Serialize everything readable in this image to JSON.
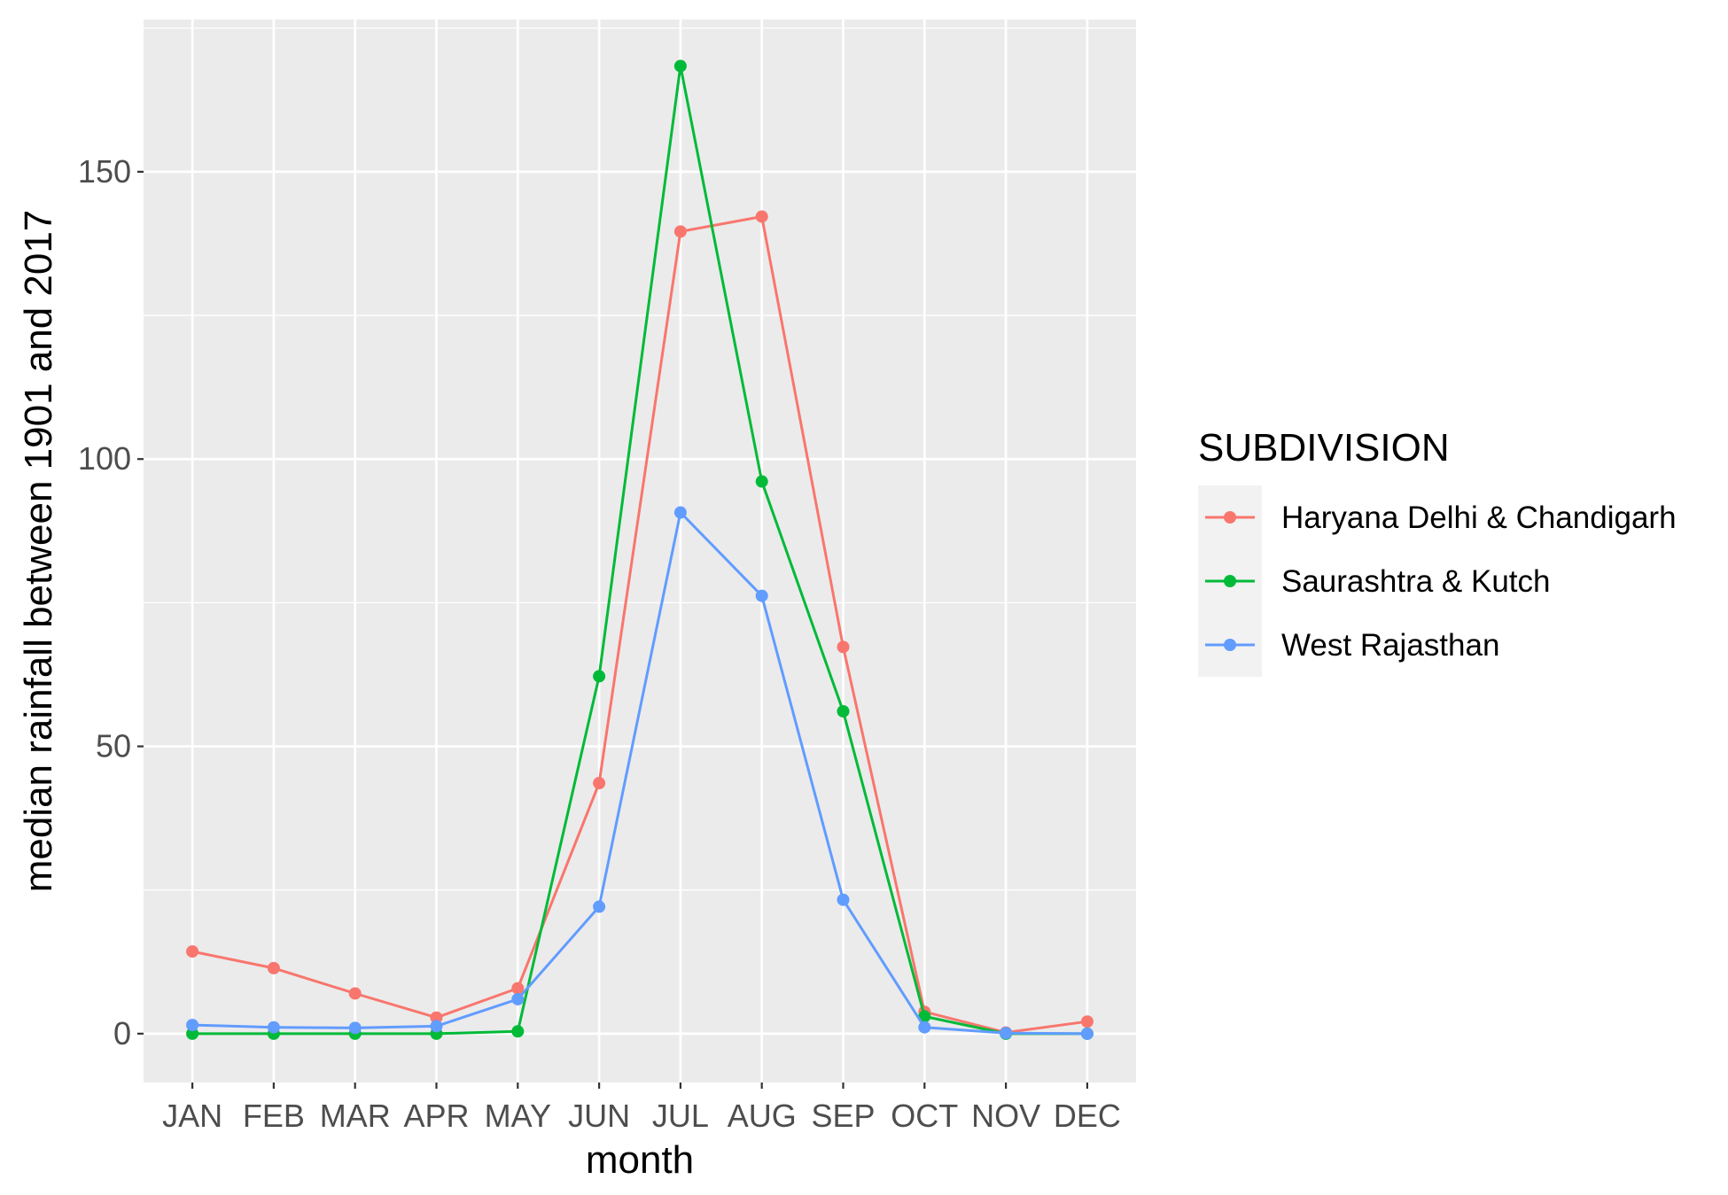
{
  "chart_data": {
    "type": "line",
    "xlabel": "month",
    "ylabel": "median rainfall between 1901 and 2017",
    "categories": [
      "JAN",
      "FEB",
      "MAR",
      "APR",
      "MAY",
      "JUN",
      "JUL",
      "AUG",
      "SEP",
      "OCT",
      "NOV",
      "DEC"
    ],
    "yticks": [
      0,
      50,
      100,
      150
    ],
    "ylim": [
      -8.5,
      176.5
    ],
    "grid": true,
    "legend": {
      "title": "SUBDIVISION",
      "placement": "right"
    },
    "series": [
      {
        "name": "Haryana Delhi & Chandigarh",
        "color": "#F8766D",
        "values": [
          14.3,
          11.4,
          7.0,
          2.8,
          7.9,
          43.6,
          139.6,
          142.2,
          67.3,
          3.8,
          0.2,
          2.1
        ]
      },
      {
        "name": "Saurashtra & Kutch",
        "color": "#00BA38",
        "values": [
          0.0,
          0.0,
          0.0,
          0.0,
          0.4,
          62.2,
          168.4,
          96.1,
          56.1,
          3.0,
          0.0,
          0.0
        ]
      },
      {
        "name": "West Rajasthan",
        "color": "#619CFF",
        "values": [
          1.5,
          1.1,
          1.0,
          1.3,
          6.0,
          22.1,
          90.7,
          76.2,
          23.3,
          1.1,
          0.1,
          0.0
        ]
      }
    ],
    "colors": {
      "panel_background": "#EBEBEB",
      "grid_line": "#FFFFFF",
      "legend_key_background": "#F2F2F2"
    }
  }
}
